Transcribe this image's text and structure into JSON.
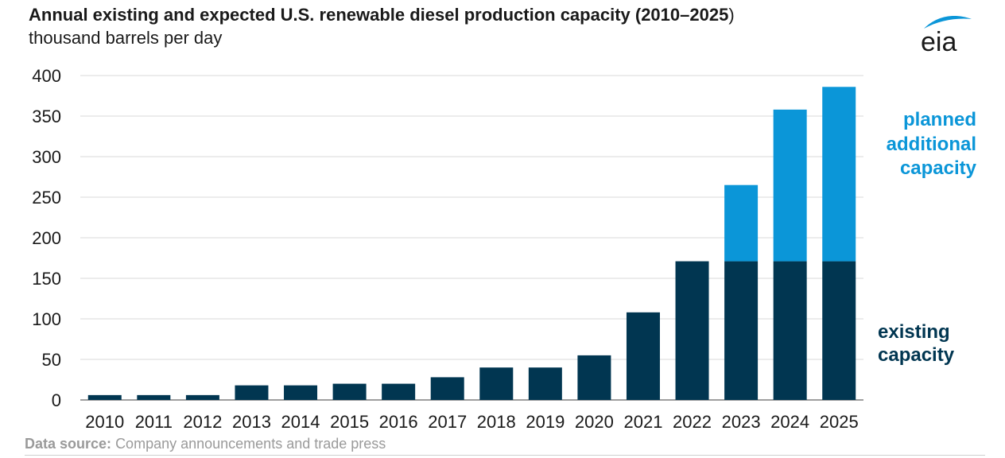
{
  "header": {
    "title_main": "Annual existing and expected U.S. renewable diesel production capacity (2010–2025",
    "title_paren": ")",
    "subtitle": "thousand barrels per day"
  },
  "logo": {
    "text": "eia",
    "icon": "eia-logo-icon",
    "accent": "#0b96d8"
  },
  "legend": {
    "planned": [
      "planned",
      "additional",
      "capacity"
    ],
    "existing": [
      "existing",
      "capacity"
    ]
  },
  "footer": {
    "source_label": "Data source:",
    "source_text": "Company announcements and trade press"
  },
  "chart_data": {
    "type": "bar",
    "stacked": true,
    "categories": [
      "2010",
      "2011",
      "2012",
      "2013",
      "2014",
      "2015",
      "2016",
      "2017",
      "2018",
      "2019",
      "2020",
      "2021",
      "2022",
      "2023",
      "2024",
      "2025"
    ],
    "series": [
      {
        "name": "existing capacity",
        "color": "#013651",
        "values": [
          6,
          6,
          6,
          18,
          18,
          20,
          20,
          28,
          40,
          40,
          55,
          108,
          171,
          171,
          171,
          171
        ]
      },
      {
        "name": "planned additional capacity",
        "color": "#0b96d8",
        "values": [
          0,
          0,
          0,
          0,
          0,
          0,
          0,
          0,
          0,
          0,
          0,
          0,
          0,
          94,
          187,
          215
        ]
      }
    ],
    "ylim": [
      0,
      400
    ],
    "yticks": [
      0,
      50,
      100,
      150,
      200,
      250,
      300,
      350,
      400
    ],
    "grid": true,
    "gridline_color": "#d9d9d9",
    "legend_placement": "right"
  }
}
